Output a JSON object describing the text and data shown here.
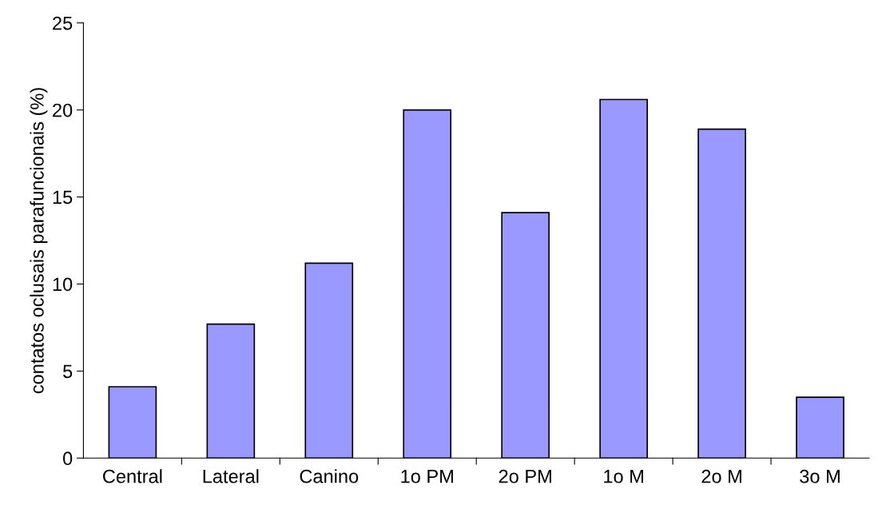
{
  "chart_data": {
    "type": "bar",
    "ylabel": "contatos oclusais parafuncionais (%)",
    "categories": [
      "Central",
      "Lateral",
      "Canino",
      "1o PM",
      "2o PM",
      "1o M",
      "2o M",
      "3o M"
    ],
    "values": [
      4.1,
      7.7,
      11.2,
      20.0,
      14.1,
      20.6,
      18.9,
      3.5
    ],
    "color": "#9999ff",
    "ylim": [
      0,
      25
    ],
    "yticks": [
      0,
      5,
      10,
      15,
      20,
      25
    ],
    "grid": false,
    "legend": false
  }
}
